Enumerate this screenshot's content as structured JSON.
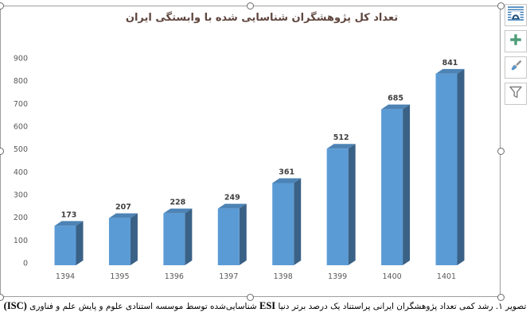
{
  "chart_data": {
    "type": "bar",
    "subtype": "3d-clustered-column",
    "title": "تعداد کل پژوهشگران شناسایی شده با وابستگی ایران",
    "categories": [
      "1394",
      "1395",
      "1396",
      "1397",
      "1398",
      "1399",
      "1400",
      "1401"
    ],
    "values": [
      173,
      207,
      228,
      249,
      361,
      512,
      685,
      841
    ],
    "ylim": [
      0,
      900
    ],
    "ytick_step": 100,
    "grid": false,
    "legend": "none",
    "data_labels": true
  },
  "caption": {
    "fa_start": "تصویر ۱. رشد کمی تعداد پژوهشگران ایرانی پراستناد یک درصد برتر دنیا ",
    "latin_esi": "ESI",
    "fa_middle": " شناسایی‌شده توسط موسسه استنادی علوم و پایش علم و فناوری ",
    "latin_isc": "(ISC)"
  },
  "side_buttons": [
    {
      "icon": "layout-options-icon"
    },
    {
      "icon": "chart-elements-plus-icon"
    },
    {
      "icon": "chart-styles-brush-icon"
    },
    {
      "icon": "chart-filters-funnel-icon"
    }
  ],
  "colors": {
    "bar_front": "#5b9bd5",
    "bar_top": "#4d83b5",
    "bar_side": "#3a6186",
    "value_label": "#3f3f3f",
    "axis_text": "#595959",
    "title_text": "#5f463e",
    "selection_border": "#9e9e9e",
    "handle_border": "#6b6b6b",
    "button_border": "#c6c6c6",
    "plus_green": "#4e9d77",
    "layout_icon_blue": "#2e74b5",
    "layout_icon_dark": "#1f4e79",
    "brush_gray": "#8f8f8f",
    "brush_blue": "#5b9bd5",
    "funnel_gray": "#7f7f7f",
    "caption_text": "#000000"
  }
}
